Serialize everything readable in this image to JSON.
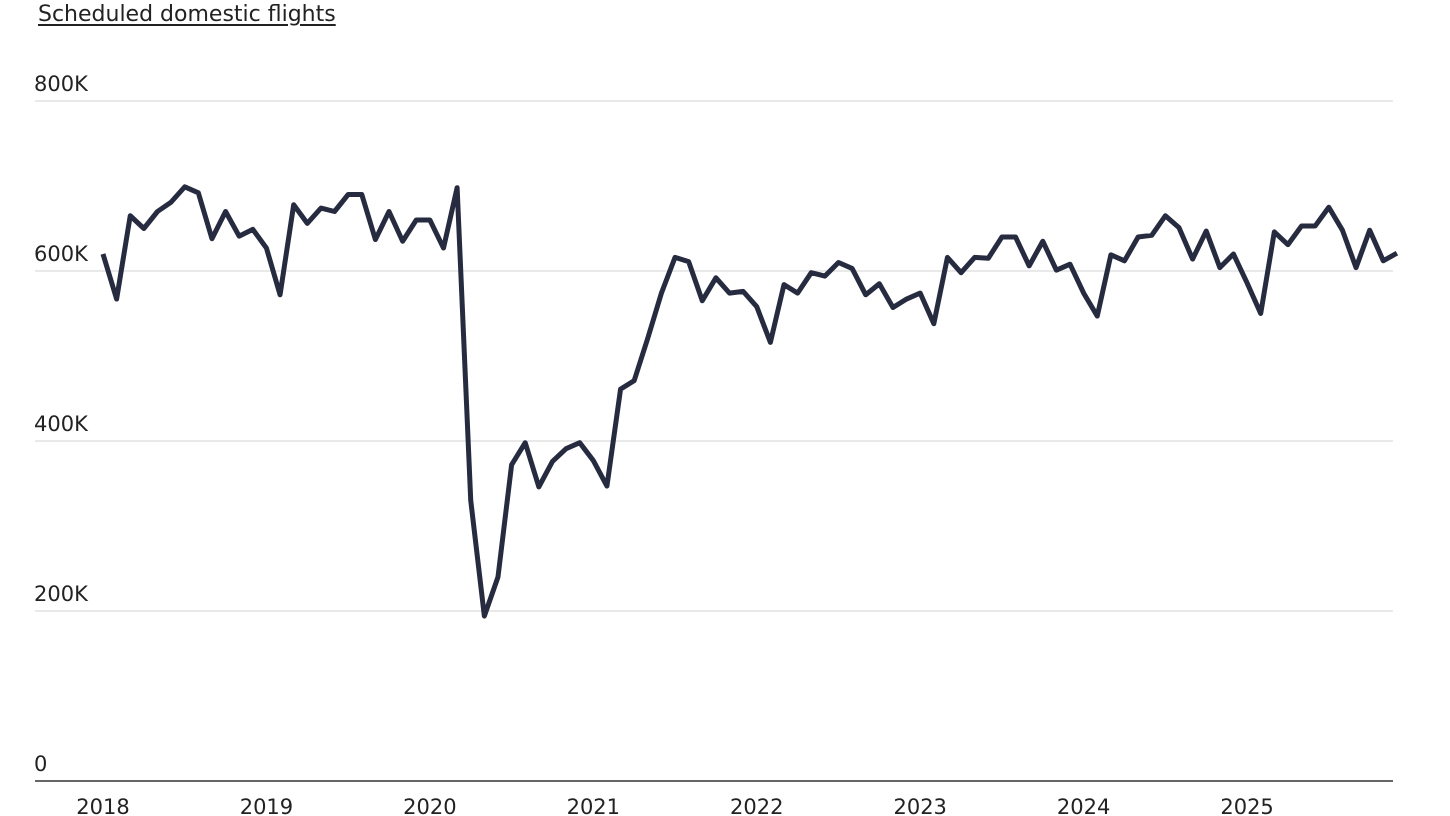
{
  "chart_data": {
    "type": "line",
    "title": "Scheduled domestic flights",
    "xlabel": "",
    "ylabel": "",
    "ylim": [
      0,
      800000
    ],
    "y_ticks": [
      {
        "value": 0,
        "label": "0"
      },
      {
        "value": 200000,
        "label": "200K"
      },
      {
        "value": 400000,
        "label": "400K"
      },
      {
        "value": 600000,
        "label": "600K"
      },
      {
        "value": 800000,
        "label": "800K"
      }
    ],
    "x_ticks": [
      "2018",
      "2019",
      "2020",
      "2021",
      "2022",
      "2023",
      "2024",
      "2025"
    ],
    "x_start": "2018-01",
    "grid": true,
    "line_color": "#262b40",
    "series": [
      {
        "name": "",
        "values": [
          620000,
          567000,
          665000,
          650000,
          670000,
          681000,
          699000,
          692000,
          638000,
          670000,
          641000,
          649000,
          627000,
          572000,
          678000,
          656000,
          674000,
          670000,
          690000,
          690000,
          637000,
          670000,
          635000,
          660000,
          660000,
          627000,
          698000,
          330000,
          194000,
          240000,
          372000,
          398000,
          346000,
          376000,
          391000,
          398000,
          377000,
          347000,
          461000,
          471000,
          521000,
          574000,
          616000,
          611000,
          565000,
          592000,
          574000,
          576000,
          558000,
          516000,
          584000,
          574000,
          598000,
          594000,
          610000,
          603000,
          572000,
          585000,
          557000,
          567000,
          574000,
          538000,
          616000,
          598000,
          616000,
          615000,
          640000,
          640000,
          606000,
          635000,
          601000,
          608000,
          574000,
          547000,
          619000,
          612000,
          640000,
          642000,
          665000,
          651000,
          614000,
          647000,
          604000,
          620000,
          586000,
          550000,
          646000,
          631000,
          653000,
          653000,
          675000,
          648000,
          604000,
          648000,
          612000,
          621000
        ]
      }
    ]
  }
}
